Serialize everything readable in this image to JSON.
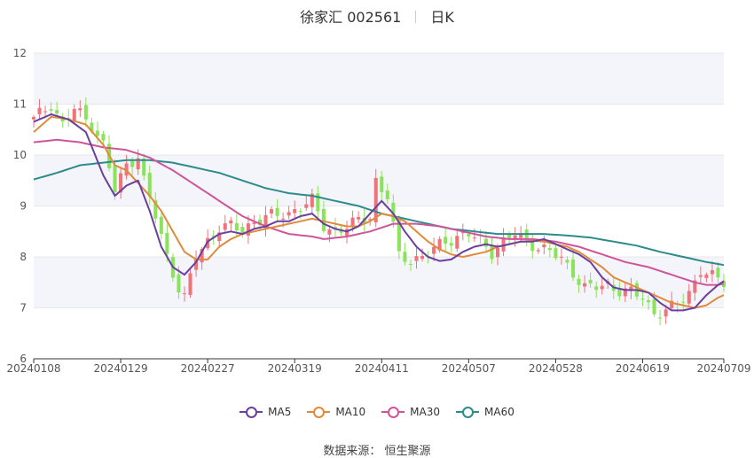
{
  "header": {
    "title": "徐家汇 002561",
    "period": "日K"
  },
  "source": "数据来源：  恒生聚源",
  "colors": {
    "up": "#f0727b",
    "down": "#8ae35a",
    "MA5": "#6b3fa0",
    "MA10": "#e08a3c",
    "MA30": "#d0549a",
    "MA60": "#2e8b8b",
    "grid": "#e6e6ef",
    "band": "#f4f5fa"
  },
  "chart_data": {
    "type": "candlestick",
    "title": "徐家汇 002561 日K",
    "ylim": [
      6,
      12
    ],
    "yticks": [
      6,
      7,
      8,
      9,
      10,
      11,
      12
    ],
    "xtick_labels": [
      "20240108",
      "20240129",
      "20240227",
      "20240319",
      "20240411",
      "20240507",
      "20240528",
      "20240619",
      "20240709"
    ],
    "legend": [
      "MA5",
      "MA10",
      "MA30",
      "MA60"
    ],
    "legend_position": "bottom",
    "dates": [
      "20240108",
      "20240109",
      "20240110",
      "20240111",
      "20240112",
      "20240115",
      "20240116",
      "20240117",
      "20240118",
      "20240119",
      "20240122",
      "20240123",
      "20240124",
      "20240125",
      "20240126",
      "20240129",
      "20240130",
      "20240131",
      "20240201",
      "20240202",
      "20240205",
      "20240206",
      "20240207",
      "20240208",
      "20240219",
      "20240220",
      "20240221",
      "20240222",
      "20240223",
      "20240226",
      "20240227",
      "20240228",
      "20240229",
      "20240301",
      "20240304",
      "20240305",
      "20240306",
      "20240307",
      "20240308",
      "20240311",
      "20240312",
      "20240313",
      "20240314",
      "20240315",
      "20240318",
      "20240319",
      "20240320",
      "20240321",
      "20240322",
      "20240325",
      "20240326",
      "20240327",
      "20240328",
      "20240329",
      "20240401",
      "20240402",
      "20240403",
      "20240408",
      "20240409",
      "20240410",
      "20240411",
      "20240412",
      "20240415",
      "20240416",
      "20240417",
      "20240418",
      "20240419",
      "20240422",
      "20240423",
      "20240424",
      "20240425",
      "20240426",
      "20240429",
      "20240430",
      "20240506",
      "20240507",
      "20240508",
      "20240509",
      "20240510",
      "20240513",
      "20240514",
      "20240515",
      "20240516",
      "20240517",
      "20240520",
      "20240521",
      "20240522",
      "20240523",
      "20240524",
      "20240527",
      "20240528",
      "20240529",
      "20240530",
      "20240531",
      "20240603",
      "20240604",
      "20240605",
      "20240606",
      "20240607",
      "20240611",
      "20240612",
      "20240613",
      "20240614",
      "20240617",
      "20240618",
      "20240619",
      "20240620",
      "20240621",
      "20240624",
      "20240625",
      "20240626",
      "20240627",
      "20240628",
      "20240701",
      "20240702",
      "20240703",
      "20240704",
      "20240705",
      "20240708",
      "20240709"
    ],
    "ma_anchors": {
      "MA5": [
        [
          0,
          10.65
        ],
        [
          3,
          10.8
        ],
        [
          6,
          10.7
        ],
        [
          9,
          10.45
        ],
        [
          12,
          9.6
        ],
        [
          14,
          9.2
        ],
        [
          16,
          9.4
        ],
        [
          18,
          9.5
        ],
        [
          20,
          8.9
        ],
        [
          22,
          8.2
        ],
        [
          24,
          7.8
        ],
        [
          26,
          7.65
        ],
        [
          28,
          7.9
        ],
        [
          30,
          8.3
        ],
        [
          32,
          8.45
        ],
        [
          34,
          8.5
        ],
        [
          36,
          8.45
        ],
        [
          38,
          8.55
        ],
        [
          40,
          8.6
        ],
        [
          42,
          8.7
        ],
        [
          44,
          8.7
        ],
        [
          46,
          8.8
        ],
        [
          48,
          8.85
        ],
        [
          50,
          8.65
        ],
        [
          52,
          8.55
        ],
        [
          54,
          8.5
        ],
        [
          56,
          8.6
        ],
        [
          58,
          8.85
        ],
        [
          60,
          9.1
        ],
        [
          62,
          8.85
        ],
        [
          64,
          8.5
        ],
        [
          66,
          8.2
        ],
        [
          68,
          8.0
        ],
        [
          70,
          7.92
        ],
        [
          72,
          7.95
        ],
        [
          74,
          8.1
        ],
        [
          76,
          8.2
        ],
        [
          78,
          8.25
        ],
        [
          80,
          8.2
        ],
        [
          82,
          8.25
        ],
        [
          84,
          8.3
        ],
        [
          86,
          8.3
        ],
        [
          88,
          8.35
        ],
        [
          90,
          8.25
        ],
        [
          92,
          8.15
        ],
        [
          94,
          8.05
        ],
        [
          96,
          7.9
        ],
        [
          98,
          7.6
        ],
        [
          100,
          7.4
        ],
        [
          102,
          7.35
        ],
        [
          104,
          7.35
        ],
        [
          106,
          7.3
        ],
        [
          108,
          7.1
        ],
        [
          110,
          6.95
        ],
        [
          112,
          6.95
        ],
        [
          114,
          7.0
        ],
        [
          116,
          7.25
        ],
        [
          118,
          7.45
        ],
        [
          120,
          7.6
        ]
      ],
      "MA10": [
        [
          0,
          10.45
        ],
        [
          3,
          10.75
        ],
        [
          6,
          10.7
        ],
        [
          9,
          10.6
        ],
        [
          12,
          10.2
        ],
        [
          14,
          9.8
        ],
        [
          16,
          9.7
        ],
        [
          18,
          9.45
        ],
        [
          20,
          9.2
        ],
        [
          22,
          8.9
        ],
        [
          24,
          8.5
        ],
        [
          26,
          8.1
        ],
        [
          28,
          7.95
        ],
        [
          30,
          7.95
        ],
        [
          32,
          8.2
        ],
        [
          34,
          8.35
        ],
        [
          36,
          8.45
        ],
        [
          38,
          8.5
        ],
        [
          40,
          8.55
        ],
        [
          42,
          8.6
        ],
        [
          44,
          8.65
        ],
        [
          46,
          8.7
        ],
        [
          48,
          8.75
        ],
        [
          50,
          8.7
        ],
        [
          52,
          8.65
        ],
        [
          54,
          8.6
        ],
        [
          56,
          8.6
        ],
        [
          58,
          8.7
        ],
        [
          60,
          8.85
        ],
        [
          62,
          8.8
        ],
        [
          64,
          8.7
        ],
        [
          66,
          8.5
        ],
        [
          68,
          8.3
        ],
        [
          70,
          8.15
        ],
        [
          72,
          8.05
        ],
        [
          74,
          8.0
        ],
        [
          76,
          8.05
        ],
        [
          78,
          8.1
        ],
        [
          80,
          8.2
        ],
        [
          82,
          8.25
        ],
        [
          84,
          8.3
        ],
        [
          86,
          8.32
        ],
        [
          88,
          8.3
        ],
        [
          90,
          8.25
        ],
        [
          92,
          8.2
        ],
        [
          94,
          8.1
        ],
        [
          96,
          7.95
        ],
        [
          98,
          7.8
        ],
        [
          100,
          7.6
        ],
        [
          102,
          7.5
        ],
        [
          104,
          7.4
        ],
        [
          106,
          7.3
        ],
        [
          108,
          7.2
        ],
        [
          110,
          7.1
        ],
        [
          112,
          7.05
        ],
        [
          114,
          7.0
        ],
        [
          116,
          7.05
        ],
        [
          118,
          7.2
        ],
        [
          120,
          7.3
        ]
      ],
      "MA30": [
        [
          0,
          10.25
        ],
        [
          4,
          10.3
        ],
        [
          8,
          10.25
        ],
        [
          12,
          10.15
        ],
        [
          16,
          10.1
        ],
        [
          20,
          9.95
        ],
        [
          24,
          9.7
        ],
        [
          28,
          9.4
        ],
        [
          32,
          9.1
        ],
        [
          36,
          8.8
        ],
        [
          40,
          8.6
        ],
        [
          44,
          8.45
        ],
        [
          48,
          8.4
        ],
        [
          50,
          8.35
        ],
        [
          54,
          8.4
        ],
        [
          58,
          8.5
        ],
        [
          62,
          8.65
        ],
        [
          66,
          8.65
        ],
        [
          70,
          8.6
        ],
        [
          74,
          8.5
        ],
        [
          78,
          8.4
        ],
        [
          82,
          8.35
        ],
        [
          86,
          8.35
        ],
        [
          90,
          8.3
        ],
        [
          94,
          8.2
        ],
        [
          98,
          8.05
        ],
        [
          102,
          7.9
        ],
        [
          106,
          7.8
        ],
        [
          110,
          7.65
        ],
        [
          114,
          7.5
        ],
        [
          116,
          7.45
        ],
        [
          118,
          7.45
        ],
        [
          120,
          7.5
        ]
      ],
      "MA60": [
        [
          0,
          9.52
        ],
        [
          4,
          9.65
        ],
        [
          8,
          9.8
        ],
        [
          12,
          9.85
        ],
        [
          16,
          9.9
        ],
        [
          20,
          9.9
        ],
        [
          24,
          9.85
        ],
        [
          28,
          9.75
        ],
        [
          32,
          9.65
        ],
        [
          36,
          9.5
        ],
        [
          40,
          9.35
        ],
        [
          44,
          9.25
        ],
        [
          48,
          9.2
        ],
        [
          52,
          9.1
        ],
        [
          56,
          9.0
        ],
        [
          60,
          8.85
        ],
        [
          64,
          8.75
        ],
        [
          68,
          8.65
        ],
        [
          72,
          8.55
        ],
        [
          76,
          8.5
        ],
        [
          80,
          8.45
        ],
        [
          84,
          8.45
        ],
        [
          88,
          8.45
        ],
        [
          92,
          8.42
        ],
        [
          96,
          8.38
        ],
        [
          100,
          8.3
        ],
        [
          104,
          8.22
        ],
        [
          108,
          8.1
        ],
        [
          112,
          8.0
        ],
        [
          116,
          7.9
        ],
        [
          120,
          7.82
        ]
      ]
    },
    "candle_anchors": [
      [
        0,
        10.7
      ],
      [
        3,
        11.0
      ],
      [
        5,
        10.6
      ],
      [
        7,
        10.9
      ],
      [
        10,
        10.6
      ],
      [
        12,
        10.2
      ],
      [
        14,
        9.3
      ],
      [
        16,
        9.8
      ],
      [
        18,
        10.0
      ],
      [
        19,
        9.5
      ],
      [
        21,
        8.8
      ],
      [
        23,
        8.0
      ],
      [
        25,
        7.4
      ],
      [
        26,
        7.2
      ],
      [
        28,
        8.0
      ],
      [
        30,
        8.3
      ],
      [
        32,
        8.6
      ],
      [
        34,
        8.6
      ],
      [
        36,
        8.5
      ],
      [
        38,
        8.7
      ],
      [
        40,
        8.8
      ],
      [
        42,
        8.8
      ],
      [
        44,
        8.85
      ],
      [
        46,
        9.0
      ],
      [
        48,
        9.1
      ],
      [
        50,
        8.6
      ],
      [
        52,
        8.5
      ],
      [
        54,
        8.6
      ],
      [
        56,
        8.7
      ],
      [
        58,
        8.8
      ],
      [
        59,
        9.5
      ],
      [
        60,
        9.3
      ],
      [
        61,
        9.2
      ],
      [
        62,
        8.6
      ],
      [
        63,
        8.0
      ],
      [
        65,
        7.95
      ],
      [
        67,
        8.0
      ],
      [
        69,
        8.15
      ],
      [
        71,
        8.3
      ],
      [
        73,
        8.4
      ],
      [
        75,
        8.45
      ],
      [
        77,
        8.3
      ],
      [
        79,
        8.1
      ],
      [
        81,
        8.3
      ],
      [
        83,
        8.45
      ],
      [
        85,
        8.3
      ],
      [
        87,
        8.2
      ],
      [
        89,
        8.1
      ],
      [
        91,
        7.95
      ],
      [
        93,
        7.7
      ],
      [
        95,
        7.4
      ],
      [
        97,
        7.4
      ],
      [
        99,
        7.45
      ],
      [
        101,
        7.35
      ],
      [
        103,
        7.3
      ],
      [
        105,
        7.2
      ],
      [
        107,
        6.9
      ],
      [
        109,
        6.95
      ],
      [
        111,
        7.05
      ],
      [
        113,
        7.3
      ],
      [
        115,
        7.75
      ],
      [
        117,
        7.6
      ],
      [
        119,
        7.5
      ],
      [
        120,
        7.5
      ]
    ]
  }
}
